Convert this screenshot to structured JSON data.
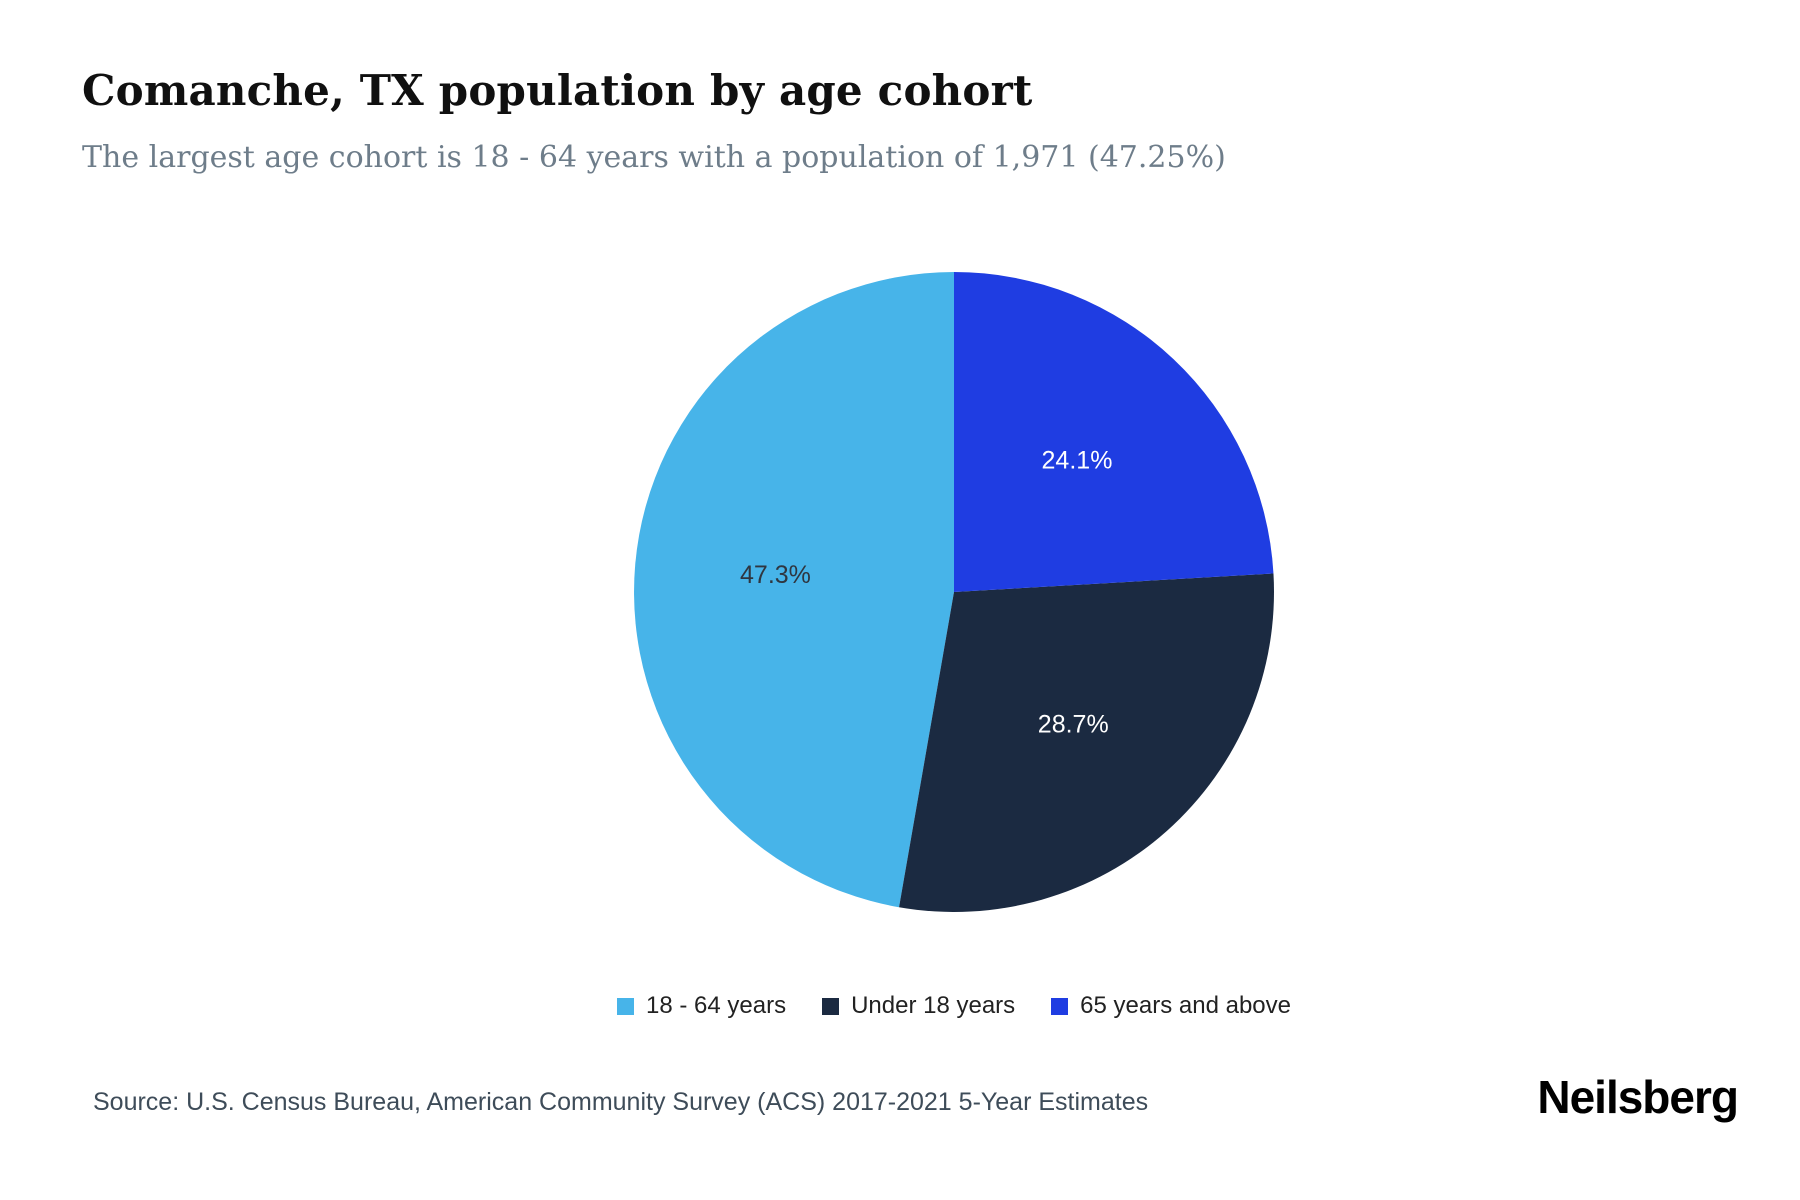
{
  "header": {
    "title": "Comanche, TX population by age cohort",
    "subtitle": "The largest age cohort is 18 - 64 years with a population of 1,971 (47.25%)"
  },
  "chart_data": {
    "type": "pie",
    "title": "Comanche, TX population by age cohort",
    "categories": [
      "18 - 64 years",
      "Under 18 years",
      "65 years and above"
    ],
    "values": [
      47.3,
      28.7,
      24.1
    ],
    "data_labels": [
      "47.3%",
      "28.7%",
      "24.1%"
    ],
    "colors": [
      "#47b4e9",
      "#1b2a41",
      "#1f3de2"
    ],
    "label_text_colors": [
      "#2f3640",
      "#ffffff",
      "#ffffff"
    ],
    "direction": "counterclockwise",
    "start_angle_deg": 0,
    "legend_position": "bottom"
  },
  "footer": {
    "source": "Source: U.S. Census Bureau, American Community Survey (ACS) 2017-2021 5-Year Estimates",
    "brand": "Neilsberg"
  }
}
